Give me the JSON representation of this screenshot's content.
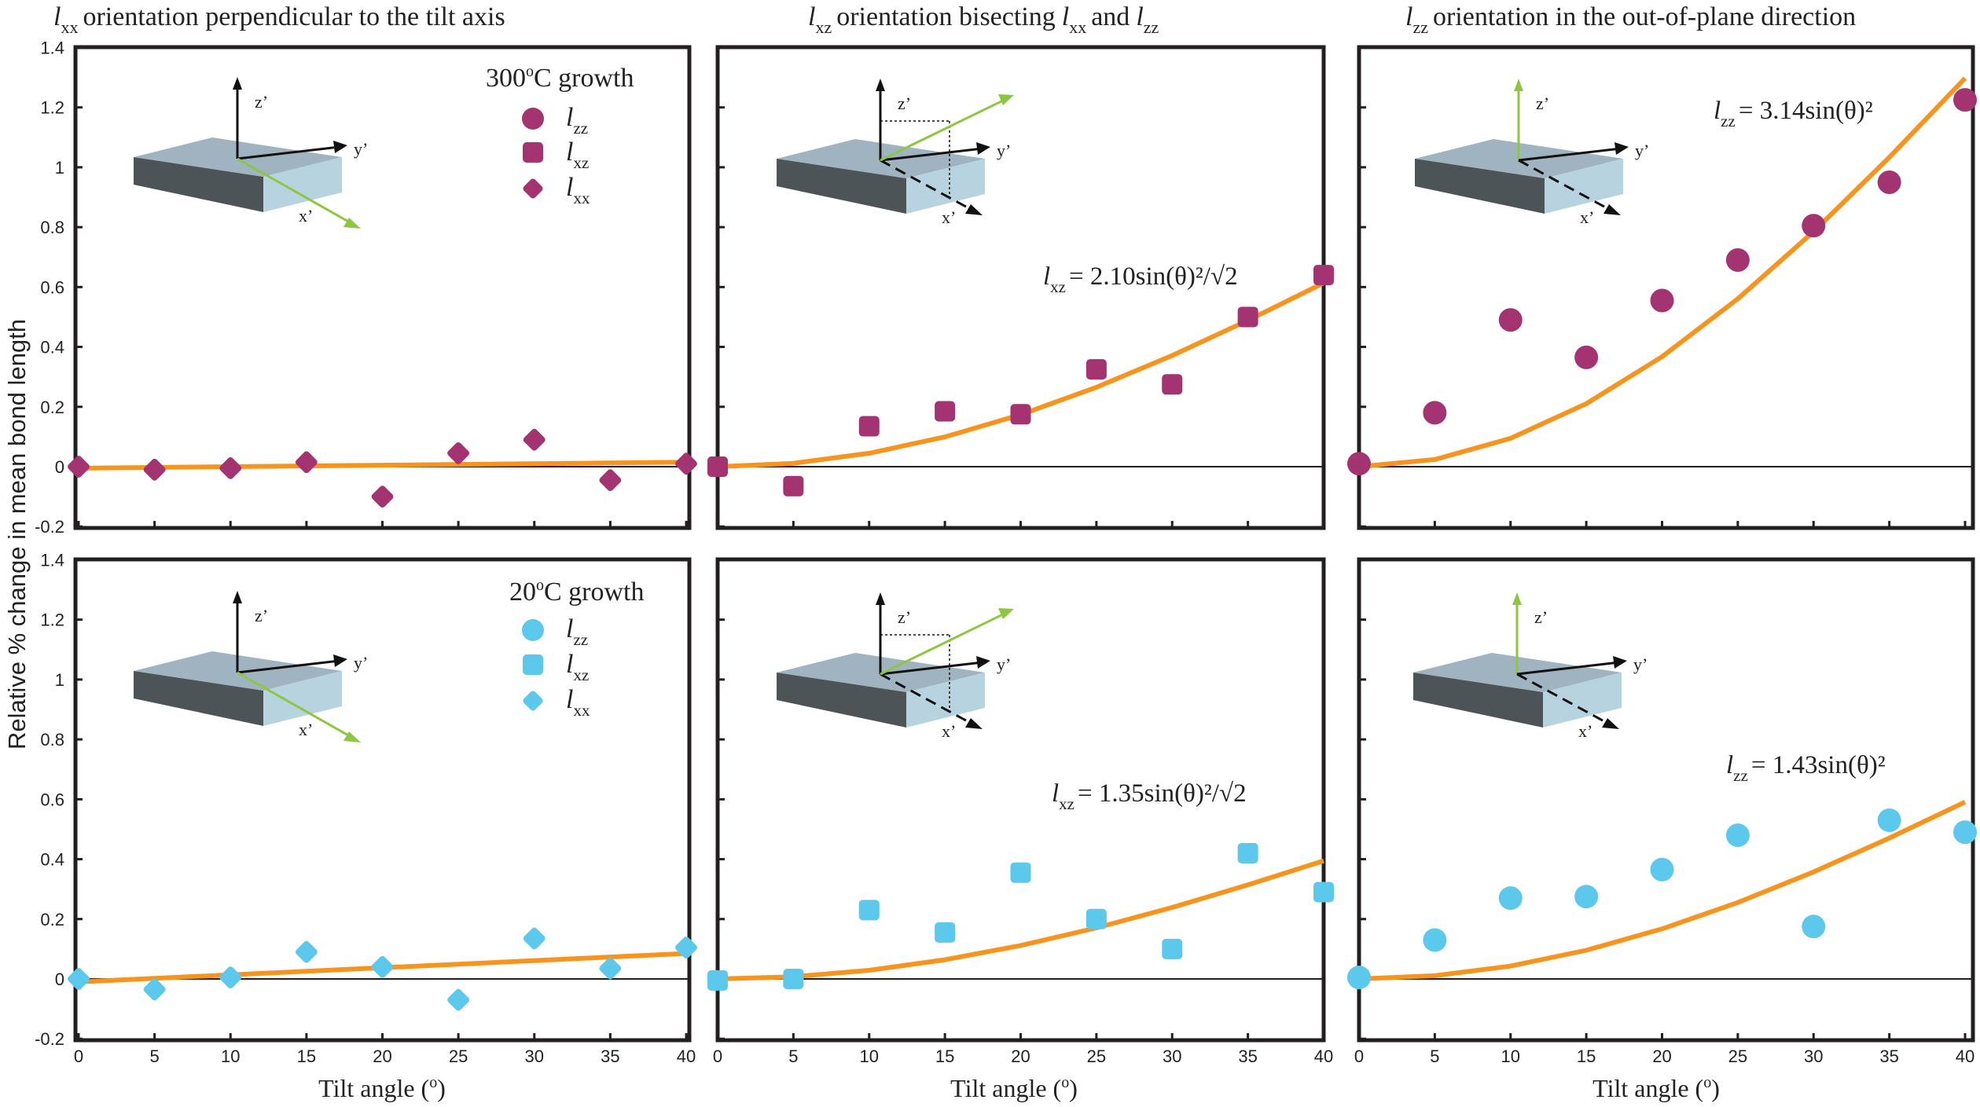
{
  "figure": {
    "column_titles": [
      {
        "var": "l",
        "sub": "xx",
        "rest": "orientation perpendicular to the tilt axis"
      },
      {
        "var": "l",
        "sub": "xz",
        "rest": "orientation bisecting",
        "var2": "l",
        "sub2": "xx",
        "mid": "and",
        "var3": "l",
        "sub3": "zz"
      },
      {
        "var": "l",
        "sub": "zz",
        "rest": "orientation in the out-of-plane direction"
      }
    ],
    "ylabel": "Relative % change in mean bond length",
    "xlabel": "Tilt angle (",
    "xlabel_sup": "o",
    "xlabel_close": ")",
    "x_ticks": [
      "0",
      "5",
      "10",
      "15",
      "20",
      "25",
      "30",
      "35",
      "40"
    ],
    "y_ticks": [
      "1.4",
      "1.2",
      "1",
      "0.8",
      "0.6",
      "0.4",
      "0.2",
      "0",
      "-0.2"
    ],
    "growth_labels": [
      {
        "pre": "300",
        "sup": "o",
        "post": "C growth"
      },
      {
        "pre": "20",
        "sup": "o",
        "post": "C growth"
      }
    ],
    "legend": [
      {
        "var": "l",
        "sub": "zz",
        "marker": "circle"
      },
      {
        "var": "l",
        "sub": "xz",
        "marker": "square"
      },
      {
        "var": "l",
        "sub": "xx",
        "marker": "diamond"
      }
    ],
    "axis_labels_3d": {
      "z": "z’",
      "y": "y’",
      "x": "x’"
    },
    "colors": {
      "magenta": "#A33471",
      "cyan": "#5BC8EC",
      "fit": "#F7941D",
      "slab_top": "#9FB4C0",
      "slab_front": "#B8D3E0",
      "slab_side": "#4C5458",
      "green": "#8DC63F"
    }
  },
  "equations": [
    {
      "var": "l",
      "sub": "xz",
      "text": "= 2.10sin(θ)²/√2"
    },
    {
      "var": "l",
      "sub": "zz",
      "text": "= 3.14sin(θ)²"
    },
    {
      "var": "l",
      "sub": "xz",
      "text": "= 1.35sin(θ)²/√2"
    },
    {
      "var": "l",
      "sub": "zz",
      "text": "= 1.43sin(θ)²"
    }
  ],
  "chart_data": [
    {
      "type": "scatter",
      "panel": "300C lxx",
      "xlabel": "",
      "ylabel": "Relative % change in mean bond length",
      "xlim": [
        0,
        40
      ],
      "ylim": [
        -0.2,
        1.4
      ],
      "marker": "diamond",
      "color": "magenta",
      "x": [
        0,
        5,
        10,
        15,
        20,
        25,
        30,
        35,
        40
      ],
      "y": [
        0.0,
        -0.01,
        -0.005,
        0.015,
        -0.1,
        0.045,
        0.09,
        -0.045,
        0.01
      ],
      "fit": {
        "x": [
          0,
          40
        ],
        "y": [
          -0.005,
          0.015
        ],
        "kind": "linear"
      }
    },
    {
      "type": "scatter",
      "panel": "300C lxz",
      "xlim": [
        0,
        40
      ],
      "ylim": [
        -0.2,
        1.4
      ],
      "marker": "square",
      "color": "magenta",
      "x": [
        0,
        5,
        10,
        15,
        20,
        25,
        30,
        35,
        40
      ],
      "y": [
        0.0,
        -0.065,
        0.135,
        0.185,
        0.175,
        0.325,
        0.275,
        0.5,
        0.64
      ],
      "fit": {
        "kind": "sin2",
        "coef": 1.485
      }
    },
    {
      "type": "scatter",
      "panel": "300C lzz",
      "xlim": [
        0,
        40
      ],
      "ylim": [
        -0.2,
        1.4
      ],
      "marker": "circle",
      "color": "magenta",
      "x": [
        0,
        5,
        10,
        15,
        20,
        25,
        30,
        35,
        40
      ],
      "y": [
        0.01,
        0.18,
        0.49,
        0.365,
        0.555,
        0.69,
        0.805,
        0.95,
        1.225
      ],
      "fit": {
        "kind": "sin2",
        "coef": 3.14
      }
    },
    {
      "type": "scatter",
      "panel": "20C lxx",
      "xlabel": "Tilt angle (o)",
      "ylabel": "Relative % change in mean bond length",
      "xlim": [
        0,
        40
      ],
      "ylim": [
        -0.2,
        1.4
      ],
      "marker": "diamond",
      "color": "cyan",
      "x": [
        0,
        5,
        10,
        15,
        20,
        25,
        30,
        35,
        40
      ],
      "y": [
        0.0,
        -0.035,
        0.005,
        0.09,
        0.04,
        -0.07,
        0.135,
        0.035,
        0.105
      ],
      "fit": {
        "x": [
          0,
          40
        ],
        "y": [
          -0.01,
          0.085
        ],
        "kind": "linear"
      }
    },
    {
      "type": "scatter",
      "panel": "20C lxz",
      "xlabel": "Tilt angle (o)",
      "xlim": [
        0,
        40
      ],
      "ylim": [
        -0.2,
        1.4
      ],
      "marker": "square",
      "color": "cyan",
      "x": [
        0,
        5,
        10,
        15,
        20,
        25,
        30,
        35,
        40
      ],
      "y": [
        -0.005,
        0.0,
        0.23,
        0.155,
        0.355,
        0.2,
        0.1,
        0.42,
        0.29
      ],
      "fit": {
        "kind": "sin2",
        "coef": 0.955
      }
    },
    {
      "type": "scatter",
      "panel": "20C lzz",
      "xlabel": "Tilt angle (o)",
      "xlim": [
        0,
        40
      ],
      "ylim": [
        -0.2,
        1.4
      ],
      "marker": "circle",
      "color": "cyan",
      "x": [
        0,
        5,
        10,
        15,
        20,
        25,
        30,
        35,
        40
      ],
      "y": [
        0.005,
        0.13,
        0.27,
        0.275,
        0.365,
        0.48,
        0.175,
        0.53,
        0.49
      ],
      "fit": {
        "kind": "sin2",
        "coef": 1.43
      }
    }
  ]
}
